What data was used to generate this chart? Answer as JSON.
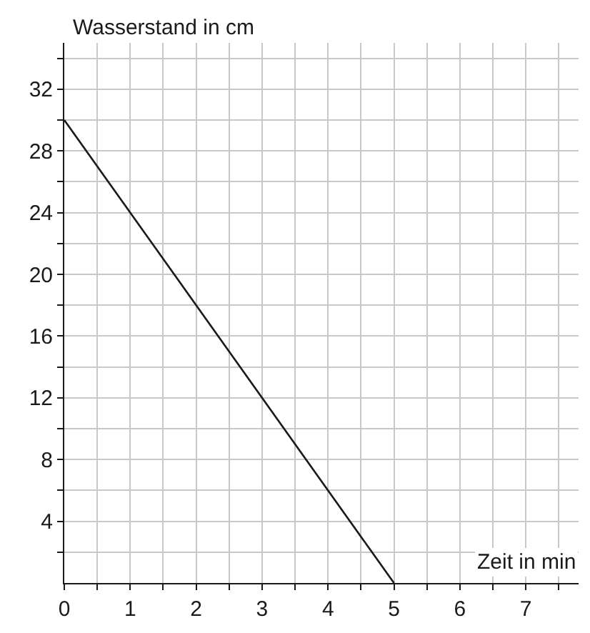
{
  "chart_data": {
    "type": "line",
    "xlabel": "Zeit in min",
    "ylabel": "Wasserstand in cm",
    "x": [
      0,
      5
    ],
    "series": [
      {
        "color": "#1a1a1a",
        "values": [
          30,
          0
        ]
      }
    ],
    "xlim": [
      0,
      7.8
    ],
    "ylim": [
      0,
      35
    ],
    "xticks": [
      0,
      {
        "value": 0.5,
        "label": null
      },
      1,
      {
        "value": 1.5,
        "label": null
      },
      2,
      {
        "value": 2.5,
        "label": null
      },
      3,
      {
        "value": 3.5,
        "label": null
      },
      4,
      {
        "value": 4.5,
        "label": null
      },
      5,
      {
        "value": 5.5,
        "label": null
      },
      6,
      {
        "value": 6.5,
        "label": null
      },
      7,
      {
        "value": 7.5,
        "label": null
      }
    ],
    "yticks": [
      {
        "value": 2,
        "label": null
      },
      4,
      {
        "value": 6,
        "label": null
      },
      8,
      {
        "value": 10,
        "label": null
      },
      12,
      {
        "value": 14,
        "label": null
      },
      16,
      {
        "value": 18,
        "label": null
      },
      20,
      {
        "value": 22,
        "label": null
      },
      24,
      {
        "value": 26,
        "label": null
      },
      28,
      {
        "value": 30,
        "label": null
      },
      32,
      {
        "value": 34,
        "label": null
      }
    ],
    "grid": true,
    "marker": "none",
    "line_style": "solid"
  }
}
